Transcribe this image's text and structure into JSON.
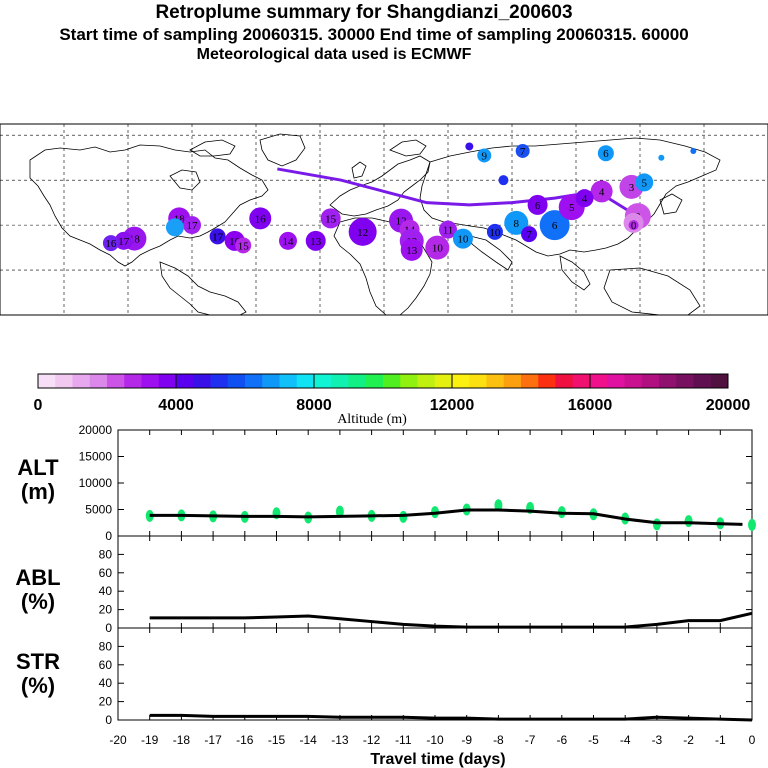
{
  "title": {
    "line1": "Retroplume summary for Shangdianzi_200603",
    "line2": "Start time of sampling 20060315. 30000     End time of sampling 20060315. 60000",
    "line3": "Meteorological data used is ECMWF"
  },
  "colorbar": {
    "label": "Altitude (m)",
    "ticks": [
      "0",
      "4000",
      "8000",
      "12000",
      "16000",
      "20000"
    ],
    "colors": [
      "#f7e0f7",
      "#f0c8f0",
      "#e8a8ee",
      "#dc88ea",
      "#cc55e8",
      "#b428e8",
      "#9f10f0",
      "#8000f0",
      "#5a00f0",
      "#3a10e8",
      "#2030f0",
      "#1050f0",
      "#1070f8",
      "#1098f8",
      "#10c0f8",
      "#10e4f4",
      "#10f4d4",
      "#10f0b0",
      "#10f084",
      "#20f050",
      "#50f020",
      "#90f010",
      "#c0f010",
      "#e4f010",
      "#fcf010",
      "#fce010",
      "#fcc010",
      "#fca010",
      "#fc7010",
      "#fc3010",
      "#f01040",
      "#f01070",
      "#f0108c",
      "#e010a0",
      "#c81090",
      "#b01080",
      "#901070",
      "#781060",
      "#601050",
      "#501040"
    ]
  },
  "map": {
    "route_color": "#7a1ae8",
    "markers": [
      {
        "label": "18",
        "lon": -117,
        "lat": 34,
        "color": "#9a16ee",
        "size": 12
      },
      {
        "label": "17",
        "lon": -122,
        "lat": 33,
        "color": "#8a10ee",
        "size": 9
      },
      {
        "label": "16",
        "lon": -128,
        "lat": 32,
        "color": "#6f22f0",
        "size": 8
      },
      {
        "label": "18",
        "lon": -96,
        "lat": 43,
        "color": "#9f10f0",
        "size": 11
      },
      {
        "label": "17",
        "lon": -90,
        "lat": 40,
        "color": "#a020f0",
        "size": 9
      },
      {
        "label": "",
        "lon": -98,
        "lat": 39,
        "color": "#1a9ff8",
        "size": 9
      },
      {
        "label": "17",
        "lon": -78,
        "lat": 35,
        "color": "#3a10e8",
        "size": 8
      },
      {
        "label": "16",
        "lon": -70,
        "lat": 33,
        "color": "#8c00f0",
        "size": 10
      },
      {
        "label": "15",
        "lon": -66,
        "lat": 31,
        "color": "#b428e8",
        "size": 8
      },
      {
        "label": "16",
        "lon": -58,
        "lat": 43,
        "color": "#8000f0",
        "size": 11
      },
      {
        "label": "14",
        "lon": -45,
        "lat": 33,
        "color": "#9f10f0",
        "size": 9
      },
      {
        "label": "13",
        "lon": -32,
        "lat": 33,
        "color": "#8000f0",
        "size": 10
      },
      {
        "label": "15",
        "lon": -25,
        "lat": 43,
        "color": "#a020f0",
        "size": 10
      },
      {
        "label": "12",
        "lon": -10,
        "lat": 37,
        "color": "#8000f0",
        "size": 14
      },
      {
        "label": "12",
        "lon": 8,
        "lat": 42,
        "color": "#9a16ee",
        "size": 12
      },
      {
        "label": "14",
        "lon": 12,
        "lat": 38,
        "color": "#b428e8",
        "size": 10
      },
      {
        "label": "12",
        "lon": 13,
        "lat": 33,
        "color": "#a020f0",
        "size": 12
      },
      {
        "label": "13",
        "lon": 13,
        "lat": 29,
        "color": "#9f10f0",
        "size": 11
      },
      {
        "label": "10",
        "lon": 25,
        "lat": 30,
        "color": "#b428e8",
        "size": 12
      },
      {
        "label": "11",
        "lon": 30,
        "lat": 38,
        "color": "#a020f0",
        "size": 9
      },
      {
        "label": "10",
        "lon": 37,
        "lat": 34,
        "color": "#1098f8",
        "size": 10
      },
      {
        "label": "10",
        "lon": 52,
        "lat": 37,
        "color": "#2030f0",
        "size": 8
      },
      {
        "label": "8",
        "lon": 62,
        "lat": 41,
        "color": "#1098f8",
        "size": 12
      },
      {
        "label": "7",
        "lon": 68,
        "lat": 36,
        "color": "#5a00f0",
        "size": 8
      },
      {
        "label": "6",
        "lon": 80,
        "lat": 40,
        "color": "#1070f8",
        "size": 15
      },
      {
        "label": "6",
        "lon": 72,
        "lat": 49,
        "color": "#8000f0",
        "size": 10
      },
      {
        "label": "5",
        "lon": 88,
        "lat": 48,
        "color": "#9f10f0",
        "size": 13
      },
      {
        "label": "4",
        "lon": 102,
        "lat": 55,
        "color": "#b428e8",
        "size": 11
      },
      {
        "label": "4",
        "lon": 94,
        "lat": 52,
        "color": "#8000f0",
        "size": 9
      },
      {
        "label": "3",
        "lon": 116,
        "lat": 57,
        "color": "#c044e8",
        "size": 12
      },
      {
        "label": "6",
        "lon": 104,
        "lat": 72,
        "color": "#1098f8",
        "size": 8
      },
      {
        "label": "5",
        "lon": 122,
        "lat": 59,
        "color": "#1098f8",
        "size": 9
      },
      {
        "label": "2",
        "lon": 119,
        "lat": 44,
        "color": "#cc55e8",
        "size": 13
      },
      {
        "label": "1",
        "lon": 117,
        "lat": 41,
        "color": "#dc88ea",
        "size": 10
      },
      {
        "label": "0",
        "lon": 117,
        "lat": 40,
        "color": "#b428e8",
        "size": 5
      },
      {
        "label": "9",
        "lon": 47,
        "lat": 71,
        "color": "#1098f8",
        "size": 7
      },
      {
        "label": "7",
        "lon": 65,
        "lat": 73,
        "color": "#1a50f0",
        "size": 7
      },
      {
        "label": "",
        "lon": 56,
        "lat": 60,
        "color": "#2030f0",
        "size": 5
      },
      {
        "label": "",
        "lon": 40,
        "lat": 75,
        "color": "#3a10e8",
        "size": 4
      },
      {
        "label": "",
        "lon": 130,
        "lat": 70,
        "color": "#1098f8",
        "size": 3
      },
      {
        "label": "",
        "lon": 145,
        "lat": 73,
        "color": "#1070f8",
        "size": 3
      }
    ]
  },
  "chart_data": {
    "type": "line",
    "xlabel": "Travel time (days)",
    "x_ticks": [
      "-20",
      "-19",
      "-18",
      "-17",
      "-16",
      "-15",
      "-14",
      "-13",
      "-12",
      "-11",
      "-10",
      "-9",
      "-8",
      "-7",
      "-6",
      "-5",
      "-4",
      "-3",
      "-2",
      "-1",
      "0"
    ],
    "xlim": [
      -20,
      0
    ],
    "panels": [
      {
        "name": "ALT",
        "ylabel_line1": "ALT",
        "ylabel_line2": "(m)",
        "ylim": [
          0,
          20000
        ],
        "y_ticks": [
          "0",
          "5000",
          "10000",
          "15000",
          "20000"
        ],
        "x": [
          -19,
          -18,
          -17,
          -16,
          -15,
          -14,
          -13,
          -12,
          -11,
          -10,
          -9,
          -8,
          -7,
          -6,
          -5,
          -4,
          -3,
          -2,
          -1,
          -0.3
        ],
        "values": [
          3900,
          3900,
          3800,
          3700,
          3700,
          3600,
          3700,
          3800,
          3900,
          4300,
          4900,
          4900,
          4700,
          4300,
          4200,
          3200,
          2500,
          2500,
          2300,
          2200
        ],
        "scatter_x": [
          -19,
          -18,
          -17,
          -16,
          -15,
          -14,
          -13,
          -12,
          -11,
          -10,
          -9,
          -8,
          -7,
          -6,
          -5,
          -4,
          -3,
          -2,
          -1,
          0
        ],
        "scatter_y": [
          3800,
          3900,
          3700,
          3600,
          4300,
          3500,
          4600,
          3800,
          3600,
          4500,
          5000,
          5800,
          5300,
          4500,
          4100,
          3300,
          2200,
          2800,
          2400,
          2100
        ],
        "scatter_color": "#12e870"
      },
      {
        "name": "ABL",
        "ylabel_line1": "ABL",
        "ylabel_line2": "(%)",
        "ylim": [
          0,
          100
        ],
        "y_ticks": [
          "0",
          "20",
          "40",
          "60",
          "80"
        ],
        "x": [
          -19,
          -18,
          -17,
          -16,
          -15,
          -14,
          -13,
          -12,
          -11,
          -10,
          -9,
          -8,
          -7,
          -6,
          -5,
          -4,
          -3,
          -2,
          -1,
          0
        ],
        "values": [
          11,
          11,
          11,
          11,
          12,
          13,
          10,
          7,
          4,
          2,
          1,
          1,
          1,
          1,
          1,
          1,
          4,
          8,
          8,
          16
        ]
      },
      {
        "name": "STR",
        "ylabel_line1": "STR",
        "ylabel_line2": "(%)",
        "ylim": [
          0,
          100
        ],
        "y_ticks": [
          "0",
          "20",
          "40",
          "60",
          "80"
        ],
        "x": [
          -19,
          -18,
          -17,
          -16,
          -15,
          -14,
          -13,
          -12,
          -11,
          -10,
          -9,
          -8,
          -7,
          -6,
          -5,
          -4,
          -3,
          -2,
          -1,
          0
        ],
        "values": [
          5,
          5,
          4,
          4,
          4,
          4,
          3,
          3,
          3,
          2,
          2,
          1,
          1,
          1,
          1,
          1,
          3,
          2,
          1,
          0
        ]
      }
    ]
  }
}
